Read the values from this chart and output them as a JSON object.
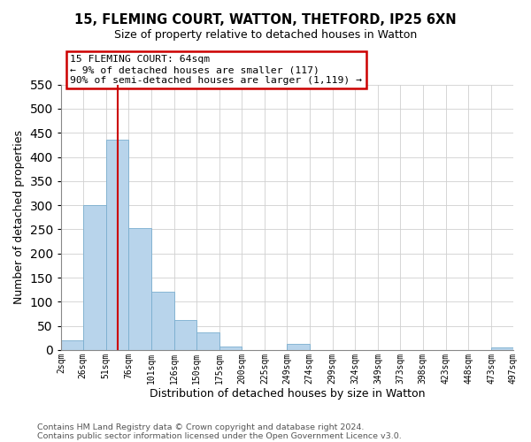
{
  "title": "15, FLEMING COURT, WATTON, THETFORD, IP25 6XN",
  "subtitle": "Size of property relative to detached houses in Watton",
  "xlabel": "Distribution of detached houses by size in Watton",
  "ylabel": "Number of detached properties",
  "bar_color": "#b8d4eb",
  "bar_edge_color": "#7aaecf",
  "annotation_box_color": "#cc0000",
  "vline_color": "#cc0000",
  "vline_x": 64,
  "annotation_lines": [
    "15 FLEMING COURT: 64sqm",
    "← 9% of detached houses are smaller (117)",
    "90% of semi-detached houses are larger (1,119) →"
  ],
  "tick_labels": [
    "2sqm",
    "26sqm",
    "51sqm",
    "76sqm",
    "101sqm",
    "126sqm",
    "150sqm",
    "175sqm",
    "200sqm",
    "225sqm",
    "249sqm",
    "274sqm",
    "299sqm",
    "324sqm",
    "349sqm",
    "373sqm",
    "398sqm",
    "423sqm",
    "448sqm",
    "473sqm",
    "497sqm"
  ],
  "bin_edges": [
    2,
    26,
    51,
    76,
    101,
    126,
    150,
    175,
    200,
    225,
    249,
    274,
    299,
    324,
    349,
    373,
    398,
    423,
    448,
    473,
    497
  ],
  "bar_heights": [
    20,
    300,
    435,
    252,
    120,
    63,
    36,
    8,
    0,
    0,
    12,
    0,
    0,
    0,
    0,
    0,
    0,
    0,
    0,
    5
  ],
  "ylim": [
    0,
    550
  ],
  "yticks": [
    0,
    50,
    100,
    150,
    200,
    250,
    300,
    350,
    400,
    450,
    500,
    550
  ],
  "footer_lines": [
    "Contains HM Land Registry data © Crown copyright and database right 2024.",
    "Contains public sector information licensed under the Open Government Licence v3.0."
  ],
  "figsize": [
    6.0,
    5.0
  ],
  "dpi": 100
}
